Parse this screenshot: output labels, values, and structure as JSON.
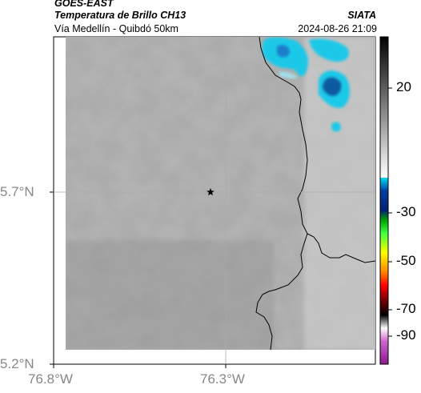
{
  "header": {
    "satellite": "GOES-EAST",
    "product": "Temperatura de Brillo CH13",
    "region": "Vía Medellín - Quibdó 50km",
    "org": "SIATA",
    "timestamp": "2024-08-26 21:09"
  },
  "axes": {
    "y_ticks": [
      "5.7°N",
      "5.2°N"
    ],
    "x_ticks": [
      "76.8°W",
      "76.3°W"
    ]
  },
  "colorbar": {
    "ticks": [
      "20",
      "-30",
      "-50",
      "-70",
      "-90"
    ]
  },
  "colors": {
    "cloud_cold": "#1ec8e8",
    "cloud_core": "#0a5aa0",
    "background_gray": "#9a9a9a",
    "border_line": "#000000",
    "grid_line": "#aaaaaa"
  },
  "icons": {
    "marker": "star-icon"
  }
}
